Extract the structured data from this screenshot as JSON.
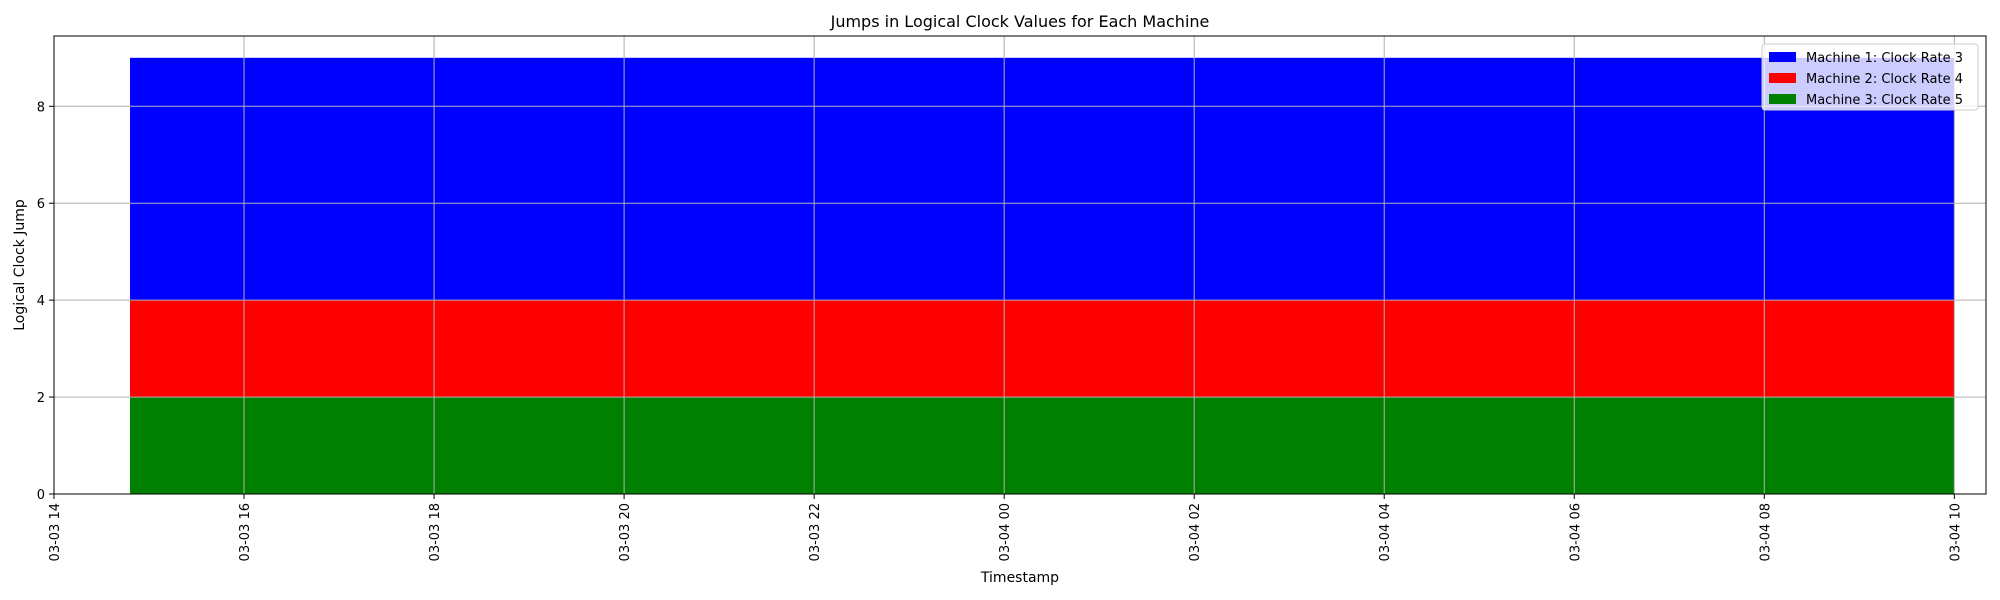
{
  "chart_data": {
    "type": "area",
    "title": "Jumps in Logical Clock Values for Each Machine",
    "xlabel": "Timestamp",
    "ylabel": "Logical Clock Jump",
    "x_range": [
      "2024-03-03 14:00",
      "2024-03-04 10:20"
    ],
    "x_data_range": [
      "2024-03-03 14:48",
      "2024-03-04 10:00"
    ],
    "x_ticks": [
      {
        "t": "2024-03-03 14:00",
        "label": "03-03 14"
      },
      {
        "t": "2024-03-03 16:00",
        "label": "03-03 16"
      },
      {
        "t": "2024-03-03 18:00",
        "label": "03-03 18"
      },
      {
        "t": "2024-03-03 20:00",
        "label": "03-03 20"
      },
      {
        "t": "2024-03-03 22:00",
        "label": "03-03 22"
      },
      {
        "t": "2024-03-04 00:00",
        "label": "03-04 00"
      },
      {
        "t": "2024-03-04 02:00",
        "label": "03-04 02"
      },
      {
        "t": "2024-03-04 04:00",
        "label": "03-04 04"
      },
      {
        "t": "2024-03-04 06:00",
        "label": "03-04 06"
      },
      {
        "t": "2024-03-04 08:00",
        "label": "03-04 08"
      },
      {
        "t": "2024-03-04 10:00",
        "label": "03-04 10"
      }
    ],
    "ylim": [
      0,
      9.45
    ],
    "y_ticks": [
      0,
      2,
      4,
      6,
      8
    ],
    "grid": true,
    "legend_position": "top-right",
    "series": [
      {
        "name": "Machine 1: Clock Rate 3",
        "color": "#0000ff",
        "bottom": 4,
        "top": 9
      },
      {
        "name": "Machine 2: Clock Rate 4",
        "color": "#ff0000",
        "bottom": 2,
        "top": 4
      },
      {
        "name": "Machine 3: Clock Rate 5",
        "color": "#008000",
        "bottom": 0,
        "top": 2
      }
    ]
  }
}
